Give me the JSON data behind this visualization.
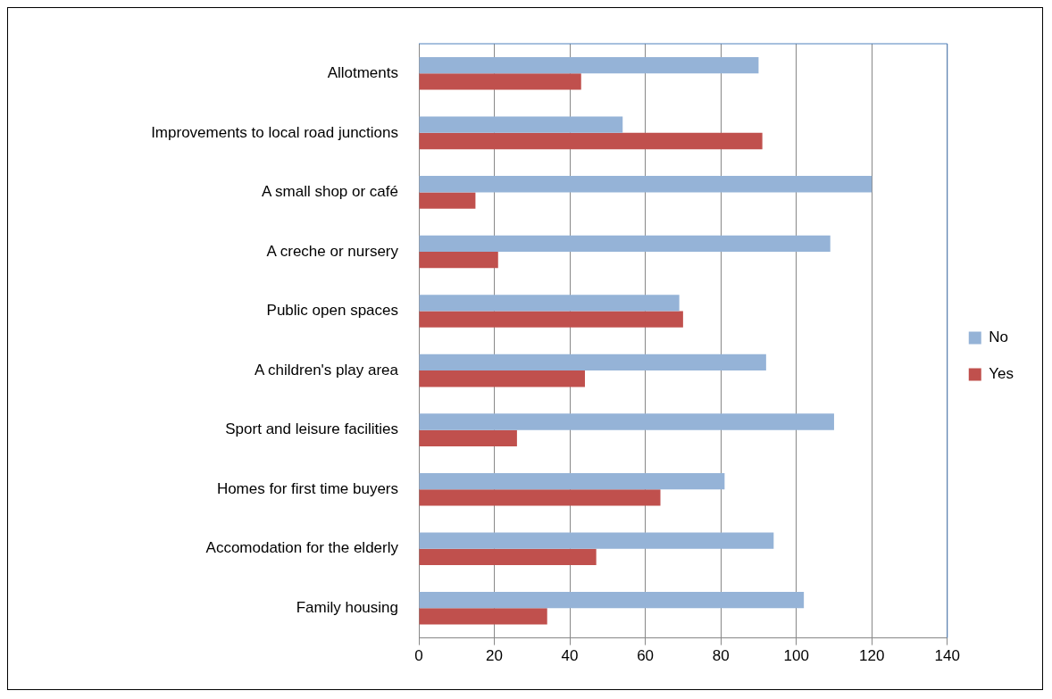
{
  "chart_data": {
    "type": "bar",
    "orientation": "horizontal",
    "categories": [
      "Allotments",
      "Improvements to local road junctions",
      "A small shop or café",
      "A creche or nursery",
      "Public open spaces",
      "A children's play area",
      "Sport and leisure facilities",
      "Homes for first time buyers",
      "Accomodation for the elderly",
      "Family housing"
    ],
    "series": [
      {
        "name": "No",
        "color": "#95b3d7",
        "values": [
          90,
          54,
          120,
          109,
          69,
          92,
          110,
          81,
          94,
          102
        ]
      },
      {
        "name": "Yes",
        "color": "#c0504d",
        "values": [
          43,
          91,
          15,
          21,
          70,
          44,
          26,
          64,
          47,
          34
        ]
      }
    ],
    "xlim": [
      0,
      140
    ],
    "xticks": [
      0,
      20,
      40,
      60,
      80,
      100,
      120,
      140
    ],
    "grid": "x",
    "legend": "right"
  }
}
